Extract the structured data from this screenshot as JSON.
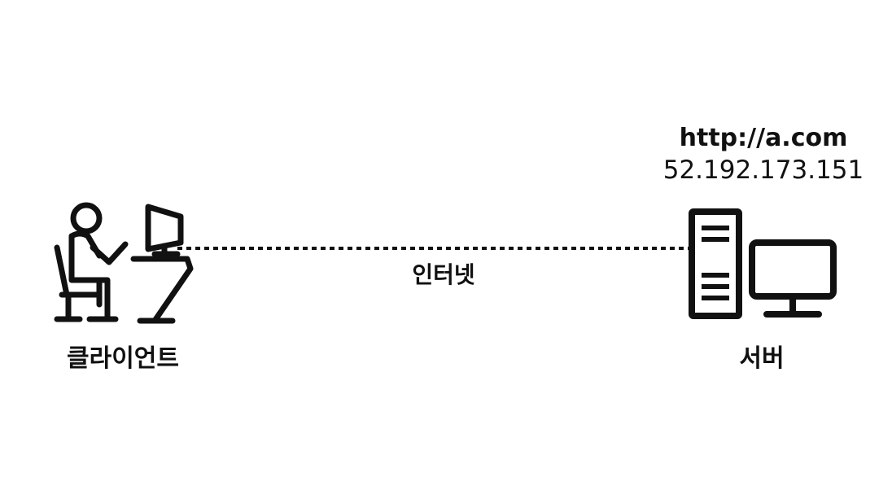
{
  "client": {
    "label": "클라이언트",
    "icon": "person-at-computer-icon"
  },
  "server": {
    "label": "서버",
    "url": "http://a.com",
    "ip": "52.192.173.151",
    "icon": "server-computer-icon"
  },
  "connection": {
    "label": "인터넷",
    "style": "dotted"
  },
  "colors": {
    "stroke": "#111111",
    "background": "#ffffff"
  }
}
